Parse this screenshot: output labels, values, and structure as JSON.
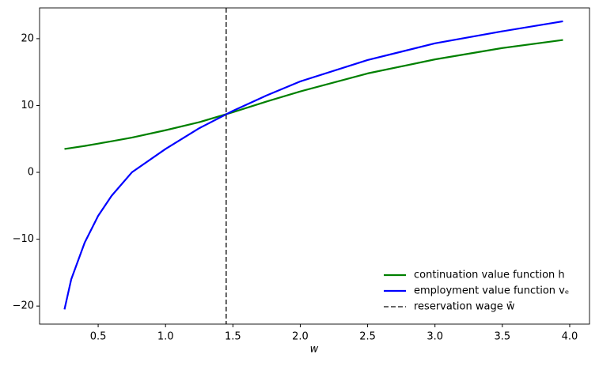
{
  "chart_data": {
    "type": "line",
    "xlabel": "w",
    "x": [
      0.25,
      0.3,
      0.4,
      0.5,
      0.6,
      0.75,
      1.0,
      1.25,
      1.5,
      1.75,
      2.0,
      2.5,
      3.0,
      3.5,
      3.95
    ],
    "series": [
      {
        "name": "continuation value function h",
        "color": "#008000",
        "values": [
          3.5,
          3.65,
          3.95,
          4.3,
          4.65,
          5.2,
          6.3,
          7.5,
          9.0,
          10.6,
          12.1,
          14.8,
          16.9,
          18.6,
          19.8
        ]
      },
      {
        "name": "employment value function vₑ",
        "color": "#0000ff",
        "values": [
          -20.5,
          -16,
          -10.5,
          -6.5,
          -3.5,
          0,
          3.5,
          6.6,
          9.2,
          11.5,
          13.6,
          16.8,
          19.3,
          21.1,
          22.6
        ]
      }
    ],
    "vline": {
      "x": 1.45,
      "name": "reservation wage w̄",
      "color": "#333333"
    },
    "xlim": [
      0.065,
      4.147
    ],
    "ylim": [
      -22.7,
      24.6
    ],
    "xticks": [
      0.5,
      {
        "value": 1,
        "label": "1.0"
      },
      1.5,
      {
        "value": 2,
        "label": "2.0"
      },
      2.5,
      {
        "value": 3,
        "label": "3.0"
      },
      3.5,
      {
        "value": 4,
        "label": "4.0"
      }
    ],
    "yticks": [
      {
        "value": -20,
        "label": "−20"
      },
      {
        "value": -10,
        "label": "−10"
      },
      0,
      10,
      20
    ],
    "legend": "lower right"
  }
}
